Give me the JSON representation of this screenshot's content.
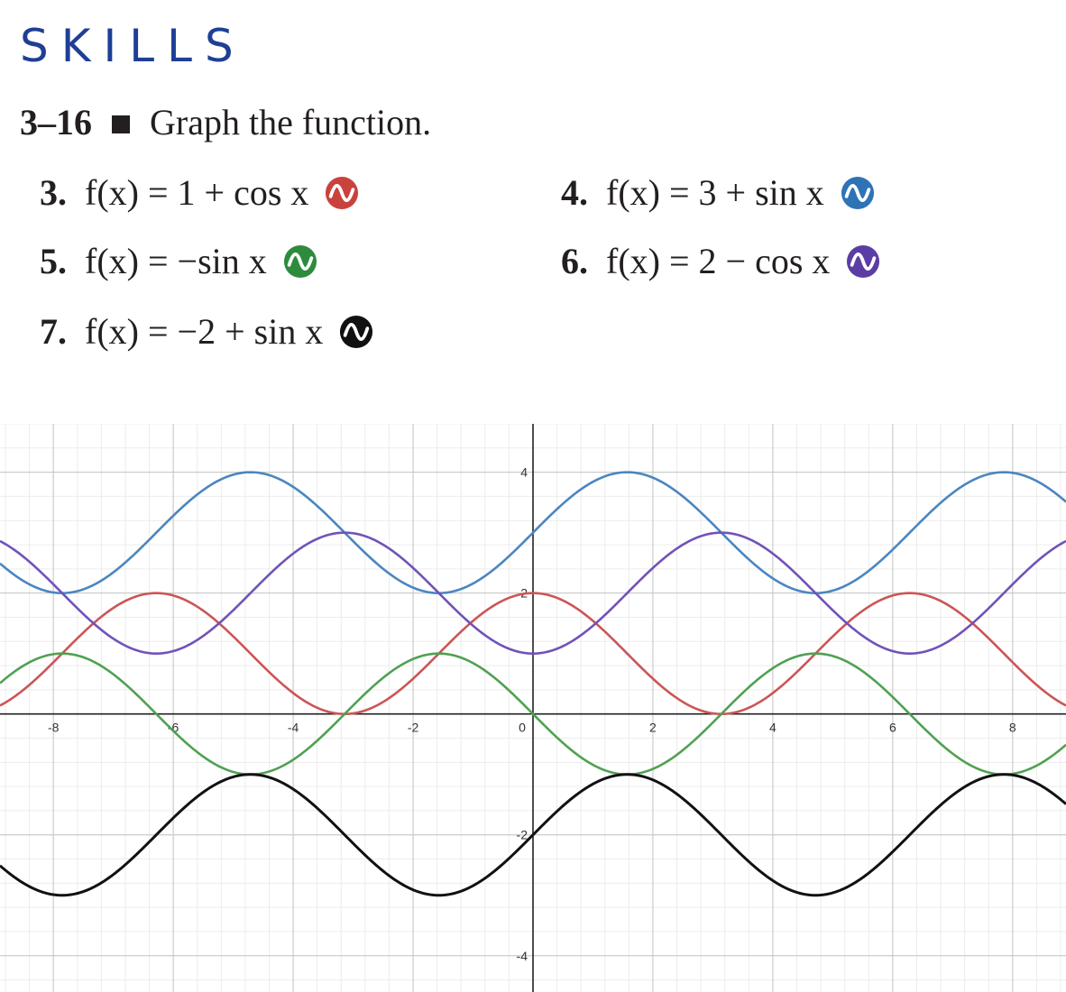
{
  "header": {
    "section_title": "SKILLS",
    "exercise_range": "3–16",
    "instruction": "Graph the function."
  },
  "exercises": [
    {
      "number": "3.",
      "expression": "f(x) = 1 + cos x",
      "icon": "graph-icon",
      "color": "#c9423d"
    },
    {
      "number": "4.",
      "expression": "f(x) = 3 + sin x",
      "icon": "graph-icon",
      "color": "#2f73b7"
    },
    {
      "number": "5.",
      "expression": "f(x) = −sin x",
      "icon": "graph-icon",
      "color": "#2e8b3e"
    },
    {
      "number": "6.",
      "expression": "f(x) = 2 − cos x",
      "icon": "graph-icon",
      "color": "#5b3da6"
    },
    {
      "number": "7.",
      "expression": "f(x) = −2 + sin x",
      "icon": "graph-icon",
      "color": "#111111"
    }
  ],
  "chart_data": {
    "type": "line",
    "xlim": [
      -8.89,
      8.89
    ],
    "ylim": [
      -4.6,
      4.8
    ],
    "grid": true,
    "x_ticks": [
      "-8",
      "-6",
      "-4",
      "-2",
      "0",
      "2",
      "4",
      "6",
      "8"
    ],
    "y_ticks": [
      "4",
      "2",
      "-2",
      "-4"
    ],
    "series": [
      {
        "function": "1 + cos x",
        "color": "#cc5555"
      },
      {
        "function": "3 + sin x",
        "color": "#4a86c0"
      },
      {
        "function": "-sin x",
        "color": "#4fa152"
      },
      {
        "function": "2 - cos x",
        "color": "#7152b8"
      },
      {
        "function": "-2 + sin x",
        "color": "#111111"
      }
    ]
  }
}
